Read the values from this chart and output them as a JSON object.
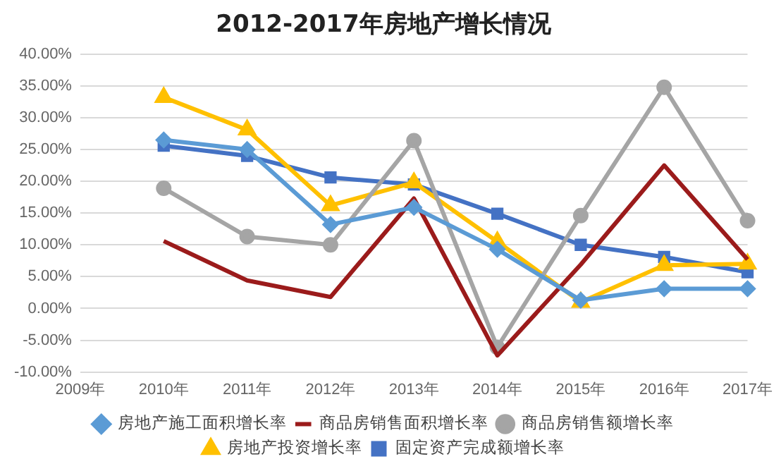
{
  "chart_data": {
    "type": "line",
    "title": "2012-2017年房地产增长情况",
    "categories": [
      "2009年",
      "2010年",
      "2011年",
      "2012年",
      "2013年",
      "2014年",
      "2015年",
      "2016年",
      "2017年"
    ],
    "series": [
      {
        "name": "房地产施工面积增长率",
        "color": "#5b9bd5",
        "marker": "diamond",
        "values": [
          null,
          26.5,
          25,
          13.2,
          15.9,
          9.3,
          1.3,
          3.1,
          3.1
        ]
      },
      {
        "name": "商品房销售面积增长率",
        "color": "#9b1b1b",
        "marker": "none",
        "values": [
          null,
          10.6,
          4.4,
          1.8,
          17.3,
          -7.4,
          6.9,
          22.5,
          7.7
        ]
      },
      {
        "name": "商品房销售额增长率",
        "color": "#a5a5a5",
        "marker": "circle",
        "values": [
          null,
          18.9,
          11.3,
          10,
          26.4,
          -6.1,
          14.6,
          34.8,
          13.8
        ]
      },
      {
        "name": "房地产投资增长率",
        "color": "#ffc000",
        "marker": "triangle",
        "values": [
          null,
          33.2,
          28.1,
          16.2,
          19.8,
          10.5,
          1,
          6.8,
          7
        ]
      },
      {
        "name": "固定资产完成额增长率",
        "color": "#4472c4",
        "marker": "square",
        "values": [
          null,
          25.6,
          24,
          20.6,
          19.5,
          14.9,
          10,
          8.1,
          5.7
        ]
      }
    ],
    "ylim": [
      -10,
      40
    ],
    "yticks": [
      {
        "value": -10,
        "label": "-10.00%"
      },
      {
        "value": -5,
        "label": "-5.00%"
      },
      {
        "value": 0,
        "label": "0.00%"
      },
      {
        "value": 5,
        "label": "5.00%"
      },
      {
        "value": 10,
        "label": "10.00%"
      },
      {
        "value": 15,
        "label": "15.00%"
      },
      {
        "value": 20,
        "label": "20.00%"
      },
      {
        "value": 25,
        "label": "25.00%"
      },
      {
        "value": 30,
        "label": "30.00%"
      },
      {
        "value": 35,
        "label": "35.00%"
      },
      {
        "value": 40,
        "label": "40.00%"
      }
    ],
    "grid": "y",
    "legend": "bottom",
    "line_style": "solid"
  }
}
